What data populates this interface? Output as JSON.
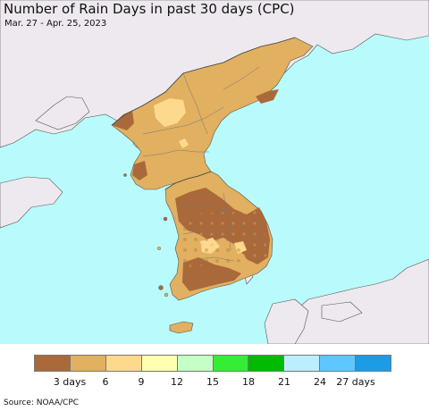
{
  "title": "Number of Rain Days in past 30 days (CPC)",
  "date_range": "Mar. 27 - Apr. 25, 2023",
  "source": "Source: NOAA/CPC",
  "colors": {
    "ocean": "#b9fbfd",
    "land_outside": "#ede9ee",
    "border": "#555555"
  },
  "legend": {
    "colors": [
      "#a9693a",
      "#e1b060",
      "#fdd98d",
      "#ffffb2",
      "#c6ffc6",
      "#33ee33",
      "#00bb00",
      "#bbefff",
      "#5cc8ff",
      "#1a9ce6"
    ],
    "ticks": [
      "3 days",
      "6",
      "9",
      "12",
      "15",
      "18",
      "21",
      "24",
      "27 days"
    ]
  }
}
